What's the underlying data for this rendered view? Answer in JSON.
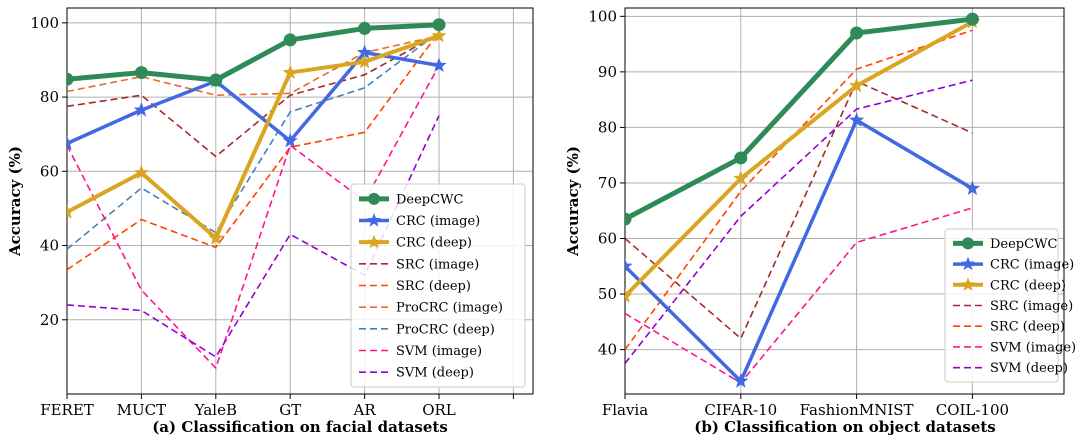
{
  "chart_data": [
    {
      "type": "line",
      "caption": "(a) Classification on facial datasets",
      "ylabel": "Accuracy (%)",
      "categories": [
        "FERET",
        "MUCT",
        "YaleB",
        "GT",
        "AR",
        "ORL"
      ],
      "ylim": [
        0,
        104
      ],
      "yticks": [
        20,
        40,
        60,
        80,
        100
      ],
      "grid": true,
      "legend_position": "lower-right",
      "series": [
        {
          "name": "DeepCWC",
          "values": [
            84.8,
            86.6,
            84.6,
            95.4,
            98.5,
            99.5
          ],
          "color": "#2e8b57",
          "style": "solid",
          "marker": "circle",
          "width": 5
        },
        {
          "name": "CRC (image)",
          "values": [
            67.5,
            76.5,
            84.3,
            68.2,
            92.0,
            88.5
          ],
          "color": "#4169e1",
          "style": "solid",
          "marker": "star",
          "width": 3.5
        },
        {
          "name": "CRC (deep)",
          "values": [
            49.0,
            59.6,
            42.0,
            86.6,
            89.5,
            96.5
          ],
          "color": "#daa520",
          "style": "solid",
          "marker": "star",
          "width": 4
        },
        {
          "name": "SRC (image)",
          "values": [
            77.5,
            80.5,
            64.0,
            80.5,
            86.0,
            97.0
          ],
          "color": "#a52a2a",
          "style": "dashed",
          "marker": "none",
          "width": 1.6
        },
        {
          "name": "SRC (deep)",
          "values": [
            33.5,
            47.0,
            39.5,
            66.5,
            70.5,
            97.5
          ],
          "color": "#ff4500",
          "style": "dashed",
          "marker": "none",
          "width": 1.6
        },
        {
          "name": "ProCRC (image)",
          "values": [
            81.5,
            85.5,
            80.5,
            81.0,
            92.0,
            96.5
          ],
          "color": "#e9692c",
          "style": "dashed",
          "marker": "none",
          "width": 1.6
        },
        {
          "name": "ProCRC (deep)",
          "values": [
            39.0,
            55.5,
            43.5,
            76.0,
            82.5,
            97.5
          ],
          "color": "#4682b4",
          "style": "dashed",
          "marker": "none",
          "width": 1.6
        },
        {
          "name": "SVM (image)",
          "values": [
            67.0,
            28.0,
            7.0,
            67.0,
            52.0,
            88.5
          ],
          "color": "#ff1493",
          "style": "dashed",
          "marker": "none",
          "width": 1.6
        },
        {
          "name": "SVM (deep)",
          "values": [
            24.0,
            22.5,
            10.0,
            43.0,
            32.0,
            75.0
          ],
          "color": "#9400d3",
          "style": "dashed",
          "marker": "none",
          "width": 1.6
        }
      ]
    },
    {
      "type": "line",
      "caption": "(b) Classification on object datasets",
      "ylabel": "Accuracy (%)",
      "categories": [
        "Flavia",
        "CIFAR-10",
        "FashionMNIST",
        "COIL-100"
      ],
      "ylim": [
        32,
        101.5
      ],
      "yticks": [
        40,
        50,
        60,
        70,
        80,
        90,
        100
      ],
      "grid": true,
      "legend_position": "lower-right",
      "series": [
        {
          "name": "DeepCWC",
          "values": [
            63.5,
            74.5,
            97.0,
            99.5
          ],
          "color": "#2e8b57",
          "style": "solid",
          "marker": "circle",
          "width": 5
        },
        {
          "name": "CRC (image)",
          "values": [
            55.0,
            34.3,
            81.3,
            69.0
          ],
          "color": "#4169e1",
          "style": "solid",
          "marker": "star",
          "width": 3.5
        },
        {
          "name": "CRC (deep)",
          "values": [
            49.6,
            70.8,
            87.5,
            99.0
          ],
          "color": "#daa520",
          "style": "solid",
          "marker": "star",
          "width": 4
        },
        {
          "name": "SRC (image)",
          "values": [
            60.0,
            42.0,
            88.3,
            79.0
          ],
          "color": "#a52a2a",
          "style": "dashed",
          "marker": "none",
          "width": 1.6
        },
        {
          "name": "SRC (deep)",
          "values": [
            40.0,
            68.5,
            90.5,
            97.5
          ],
          "color": "#ff4500",
          "style": "dashed",
          "marker": "none",
          "width": 1.6
        },
        {
          "name": "SVM (image)",
          "values": [
            46.5,
            34.0,
            59.3,
            65.5
          ],
          "color": "#ff1493",
          "style": "dashed",
          "marker": "none",
          "width": 1.6
        },
        {
          "name": "SVM (deep)",
          "values": [
            37.5,
            64.0,
            83.3,
            88.5
          ],
          "color": "#9400d3",
          "style": "dashed",
          "marker": "none",
          "width": 1.6
        }
      ]
    }
  ]
}
